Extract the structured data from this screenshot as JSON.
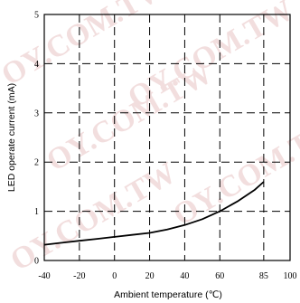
{
  "chart_data": {
    "type": "line",
    "xlabel": "Ambient temperature (℃)",
    "ylabel": "LED operate current (mA)",
    "x_ticks": [
      -40,
      -20,
      0,
      20,
      40,
      60,
      85,
      100
    ],
    "y_ticks": [
      0,
      1,
      2,
      3,
      4,
      5
    ],
    "x_tick_labels": [
      "-40",
      "-20",
      "0",
      "20",
      "40",
      "60",
      "85",
      "100"
    ],
    "y_tick_labels": [
      "0",
      "1",
      "2",
      "3",
      "4",
      "5"
    ],
    "xlim": [
      -40,
      100
    ],
    "ylim": [
      0,
      5
    ],
    "grid": true,
    "grid_style": "dashed",
    "series": [
      {
        "x": [
          -40,
          -30,
          -20,
          -10,
          0,
          10,
          20,
          30,
          40,
          50,
          60,
          70,
          80,
          85
        ],
        "y": [
          0.32,
          0.36,
          0.4,
          0.44,
          0.48,
          0.52,
          0.56,
          0.63,
          0.72,
          0.84,
          1.0,
          1.2,
          1.44,
          1.6
        ],
        "color": "#000000"
      }
    ]
  },
  "watermark": {
    "text": "OY.COM.TW",
    "color": "#f2dede"
  }
}
